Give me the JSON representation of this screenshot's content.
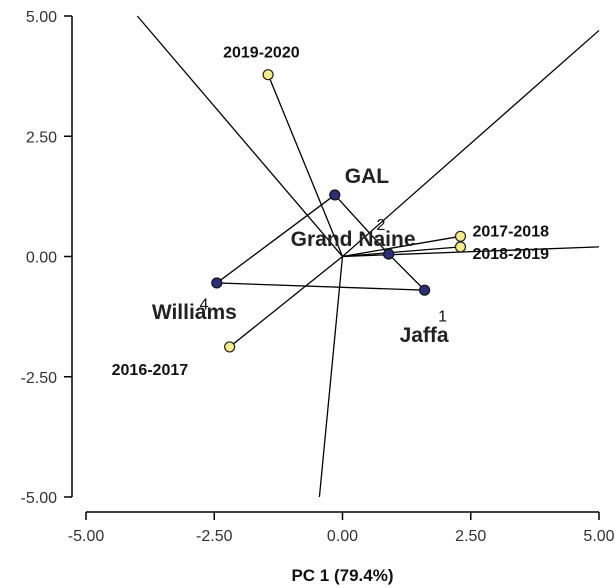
{
  "chart_data": {
    "type": "scatter",
    "title": "",
    "xlabel": "PC 1 (79.4%)",
    "ylabel": "",
    "xlim": [
      -5,
      5
    ],
    "ylim": [
      -5,
      5
    ],
    "x_ticks": [
      "-5.00",
      "-2.50",
      "0.00",
      "2.50",
      "5.00"
    ],
    "y_ticks": [
      "5.00",
      "2.50",
      "0.00",
      "-2.50",
      "-5.00"
    ],
    "grid": false,
    "colors": {
      "genotype": "#2b2f7a",
      "environment": "#f7ec8b",
      "line": "#000000"
    },
    "genotypes": [
      {
        "label": "GAL",
        "x": -0.15,
        "y": 1.28
      },
      {
        "label": "Grand Naine",
        "x": 0.9,
        "y": 0.05
      },
      {
        "label": "Williams",
        "x": -2.45,
        "y": -0.55
      },
      {
        "label": "Jaffa",
        "x": 1.6,
        "y": -0.7
      }
    ],
    "environments": [
      {
        "label": "2019-2020",
        "x": -1.45,
        "y": 3.78
      },
      {
        "label": "2017-2018",
        "x": 2.3,
        "y": 0.42
      },
      {
        "label": "2018-2019",
        "x": 2.3,
        "y": 0.2
      },
      {
        "label": "2016-2017",
        "x": -2.2,
        "y": -1.88
      }
    ],
    "number_labels": [
      {
        "text": "2",
        "x": 0.75,
        "y": 0.55
      },
      {
        "text": "4",
        "x": -2.7,
        "y": -1.1
      },
      {
        "text": "1",
        "x": 1.95,
        "y": -1.35
      }
    ],
    "polygon_order": [
      "GAL",
      "Grand Naine",
      "Jaffa",
      "Williams"
    ],
    "rays": [
      {
        "x": -4.0,
        "y": 5.0
      },
      {
        "x": 5.0,
        "y": 4.7
      },
      {
        "x": -0.45,
        "y": -5.0
      },
      {
        "x": 5.0,
        "y": 0.2
      }
    ]
  }
}
